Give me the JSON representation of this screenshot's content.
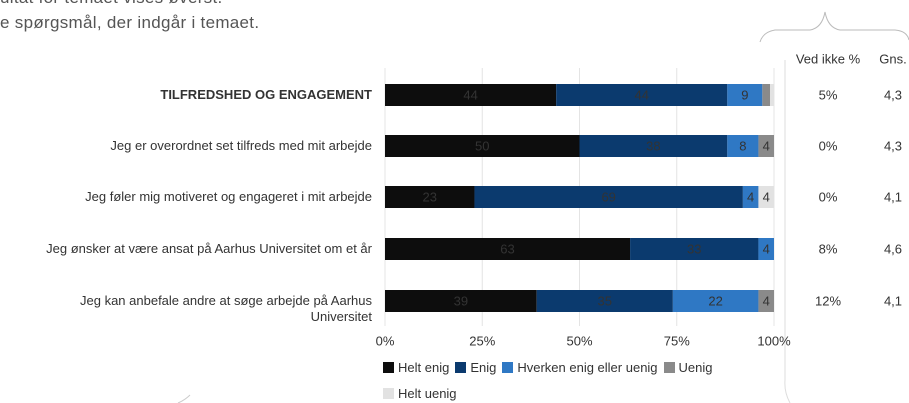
{
  "intro": [
    "ultat for temaet vises øverst.",
    "e spørgsmål, der indgår i temaet."
  ],
  "chart_data": {
    "type": "stacked_barh",
    "categories": [
      "TILFREDSHED OG ENGAGEMENT",
      "Jeg er overordnet set tilfreds med mit arbejde",
      "Jeg føler mig motiveret og engageret i mit arbejde",
      "Jeg ønsker at være ansat på Aarhus Universitet om et år",
      "Jeg kan anbefale andre at søge arbejde på Aarhus Universitet"
    ],
    "series": [
      {
        "name": "Helt enig",
        "color": "#0d0d0d",
        "values": [
          44,
          50,
          23,
          63,
          39
        ]
      },
      {
        "name": "Enig",
        "color": "#0b3a6e",
        "values": [
          44,
          38,
          69,
          33,
          35
        ]
      },
      {
        "name": "Hverken enig eller uenig",
        "color": "#2f78c4",
        "values": [
          9,
          8,
          4,
          4,
          22
        ]
      },
      {
        "name": "Uenig",
        "color": "#8a8a8a",
        "values": [
          2,
          4,
          0,
          0,
          4
        ]
      },
      {
        "name": "Helt uenig",
        "color": "#e2e2e2",
        "values": [
          1,
          0,
          4,
          0,
          0
        ]
      }
    ],
    "xlim": [
      0,
      100
    ],
    "xticks": [
      {
        "value": 0,
        "label": "0%"
      },
      {
        "value": 25,
        "label": "25%"
      },
      {
        "value": 50,
        "label": "50%"
      },
      {
        "value": 75,
        "label": "75%"
      },
      {
        "value": 100,
        "label": "100%"
      }
    ],
    "grid": true,
    "columns": [
      {
        "header": "Ved ikke %",
        "cells": [
          "5%",
          "0%",
          "0%",
          "8%",
          "12%"
        ]
      },
      {
        "header": "Gns.",
        "cells": [
          "4,3",
          "4,3",
          "4,1",
          "4,6",
          "4,1"
        ]
      }
    ]
  }
}
